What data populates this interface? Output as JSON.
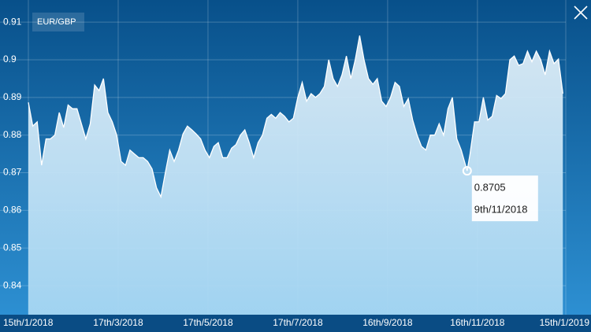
{
  "chart_data": {
    "type": "area",
    "series": [
      {
        "name": "EUR/GBP",
        "color": "#ffffff",
        "x": [
          "2018-01-15",
          "2018-01-18",
          "2018-01-21",
          "2018-01-24",
          "2018-01-27",
          "2018-01-30",
          "2018-02-02",
          "2018-02-05",
          "2018-02-08",
          "2018-02-11",
          "2018-02-14",
          "2018-02-17",
          "2018-02-20",
          "2018-02-23",
          "2018-02-26",
          "2018-03-01",
          "2018-03-04",
          "2018-03-07",
          "2018-03-10",
          "2018-03-13",
          "2018-03-16",
          "2018-03-19",
          "2018-03-22",
          "2018-03-25",
          "2018-03-28",
          "2018-03-31",
          "2018-04-03",
          "2018-04-06",
          "2018-04-09",
          "2018-04-12",
          "2018-04-15",
          "2018-04-18",
          "2018-04-21",
          "2018-04-24",
          "2018-04-27",
          "2018-04-30",
          "2018-05-03",
          "2018-05-06",
          "2018-05-09",
          "2018-05-12",
          "2018-05-15",
          "2018-05-18",
          "2018-05-21",
          "2018-05-24",
          "2018-05-27",
          "2018-05-30",
          "2018-06-02",
          "2018-06-05",
          "2018-06-08",
          "2018-06-11",
          "2018-06-14",
          "2018-06-17",
          "2018-06-20",
          "2018-06-23",
          "2018-06-26",
          "2018-06-29",
          "2018-07-02",
          "2018-07-05",
          "2018-07-08",
          "2018-07-11",
          "2018-07-14",
          "2018-07-17",
          "2018-07-20",
          "2018-07-23",
          "2018-07-26",
          "2018-07-29",
          "2018-08-01",
          "2018-08-04",
          "2018-08-07",
          "2018-08-10",
          "2018-08-13",
          "2018-08-16",
          "2018-08-19",
          "2018-08-22",
          "2018-08-25",
          "2018-08-28",
          "2018-08-31",
          "2018-09-03",
          "2018-09-06",
          "2018-09-09",
          "2018-09-12",
          "2018-09-15",
          "2018-09-18",
          "2018-09-21",
          "2018-09-24",
          "2018-09-27",
          "2018-09-30",
          "2018-10-03",
          "2018-10-06",
          "2018-10-09",
          "2018-10-12",
          "2018-10-15",
          "2018-10-18",
          "2018-10-21",
          "2018-10-24",
          "2018-10-27",
          "2018-10-30",
          "2018-11-02",
          "2018-11-05",
          "2018-11-09",
          "2018-11-11",
          "2018-11-14",
          "2018-11-17",
          "2018-11-20",
          "2018-11-23",
          "2018-11-26",
          "2018-11-29",
          "2018-12-02",
          "2018-12-05",
          "2018-12-08",
          "2018-12-11",
          "2018-12-14",
          "2018-12-17",
          "2018-12-20",
          "2018-12-23",
          "2018-12-26",
          "2018-12-29",
          "2019-01-01",
          "2019-01-04",
          "2019-01-07",
          "2019-01-10",
          "2019-01-13"
        ],
        "values": [
          0.8887,
          0.8824,
          0.8835,
          0.872,
          0.879,
          0.879,
          0.88,
          0.886,
          0.882,
          0.888,
          0.887,
          0.887,
          0.883,
          0.879,
          0.883,
          0.8933,
          0.8918,
          0.895,
          0.886,
          0.8835,
          0.88,
          0.873,
          0.872,
          0.876,
          0.875,
          0.874,
          0.874,
          0.873,
          0.871,
          0.866,
          0.8636,
          0.87,
          0.876,
          0.873,
          0.876,
          0.8803,
          0.8824,
          0.8814,
          0.8803,
          0.879,
          0.876,
          0.874,
          0.877,
          0.878,
          0.874,
          0.874,
          0.8765,
          0.8775,
          0.88,
          0.8814,
          0.878,
          0.874,
          0.878,
          0.88,
          0.8845,
          0.8855,
          0.8845,
          0.886,
          0.885,
          0.8835,
          0.8845,
          0.89,
          0.894,
          0.889,
          0.891,
          0.89,
          0.891,
          0.8929,
          0.9,
          0.895,
          0.8929,
          0.896,
          0.901,
          0.895,
          0.9,
          0.9064,
          0.9,
          0.895,
          0.8935,
          0.895,
          0.889,
          0.8876,
          0.89,
          0.894,
          0.8929,
          0.8876,
          0.8897,
          0.884,
          0.88,
          0.877,
          0.876,
          0.88,
          0.88,
          0.883,
          0.88,
          0.887,
          0.89,
          0.879,
          0.876,
          0.8705,
          0.875,
          0.8835,
          0.8835,
          0.89,
          0.884,
          0.885,
          0.8905,
          0.8897,
          0.891,
          0.9,
          0.901,
          0.8985,
          0.899,
          0.9023,
          0.8995,
          0.9023,
          0.9,
          0.896,
          0.9023,
          0.899,
          0.9002,
          0.891
        ]
      }
    ],
    "xlim": [
      "2018-01-15",
      "2019-01-15"
    ],
    "xticks": [
      {
        "value": "2018-01-15",
        "label": "15th/1/2018"
      },
      {
        "value": "2018-03-17",
        "label": "17th/3/2018"
      },
      {
        "value": "2018-05-17",
        "label": "17th/5/2018"
      },
      {
        "value": "2018-07-17",
        "label": "17th/7/2018"
      },
      {
        "value": "2018-09-16",
        "label": "16th/9/2018"
      },
      {
        "value": "2018-11-16",
        "label": "16th/11/2018"
      },
      {
        "value": "2019-01-15",
        "label": "15th/1/2019"
      }
    ],
    "ylim": [
      0.8323,
      0.9142
    ],
    "yticks": [
      0.84,
      0.85,
      0.86,
      0.87,
      0.88,
      0.89,
      0.9,
      0.91
    ],
    "grid": true,
    "tooltip": {
      "x": "2018-11-09",
      "value": 0.8705,
      "date_label": "9th/11/2018"
    }
  }
}
